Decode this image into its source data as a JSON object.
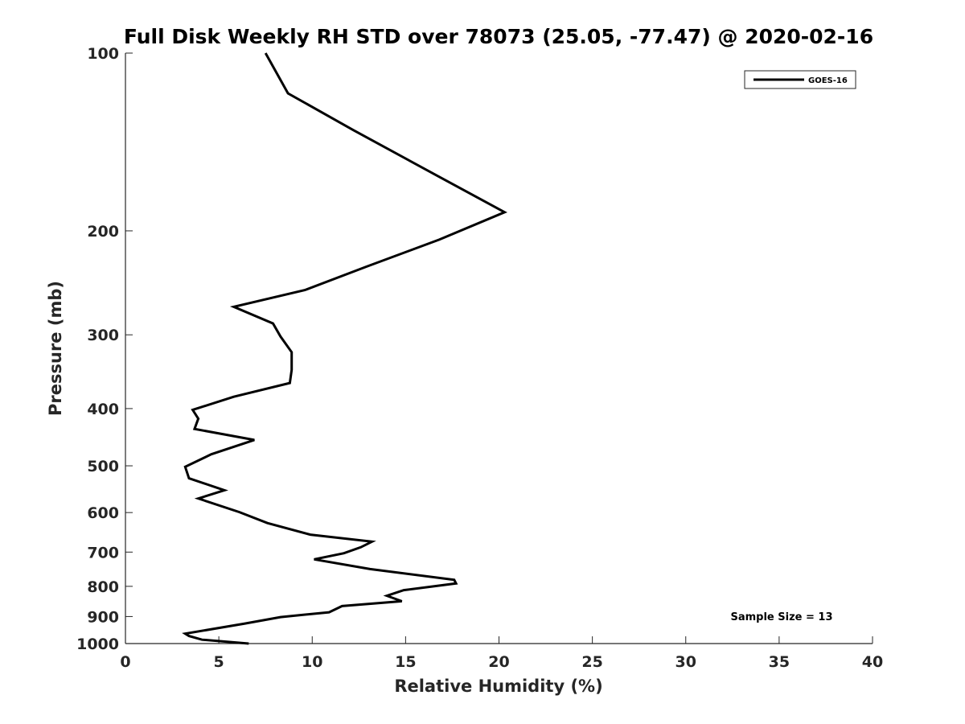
{
  "chart_data": {
    "type": "line",
    "title": "Full Disk Weekly RH STD over 78073 (25.05, -77.47) @ 2020-02-16",
    "xlabel": "Relative Humidity (%)",
    "ylabel": "Pressure (mb)",
    "xlim": [
      0,
      40
    ],
    "ylim": [
      100,
      1000
    ],
    "y_scale": "log",
    "y_reversed": true,
    "x_ticks": [
      0,
      5,
      10,
      15,
      20,
      25,
      30,
      35,
      40
    ],
    "y_ticks": [
      100,
      200,
      300,
      400,
      500,
      600,
      700,
      800,
      900,
      1000
    ],
    "grid": false,
    "legend": {
      "position": "top-right",
      "entries": [
        "GOES-16"
      ]
    },
    "annotation": "Sample Size = 13",
    "series": [
      {
        "name": "GOES-16",
        "color": "#000000",
        "x": [
          7.5,
          8.7,
          12.2,
          16.8,
          20.3,
          16.8,
          12.9,
          9.6,
          5.8,
          7.9,
          8.3,
          8.9,
          8.9,
          8.8,
          5.8,
          3.6,
          3.9,
          3.7,
          6.9,
          4.6,
          3.2,
          3.4,
          5.3,
          3.9,
          6.1,
          7.6,
          9.9,
          13.2,
          12.6,
          11.7,
          10.1,
          13.1,
          17.6,
          17.7,
          14.9,
          14.0,
          14.8,
          11.6,
          10.9,
          8.3,
          6.4,
          3.2,
          3.4,
          4.1,
          6.6
        ],
        "y": [
          100,
          117,
          135,
          162,
          186,
          207,
          230,
          252,
          269,
          287,
          302,
          321,
          344,
          362,
          382,
          402,
          416,
          433,
          452,
          478,
          502,
          525,
          550,
          568,
          599,
          625,
          654,
          672,
          687,
          703,
          720,
          748,
          780,
          791,
          812,
          830,
          848,
          864,
          885,
          902,
          925,
          962,
          971,
          985,
          1000
        ]
      }
    ]
  }
}
